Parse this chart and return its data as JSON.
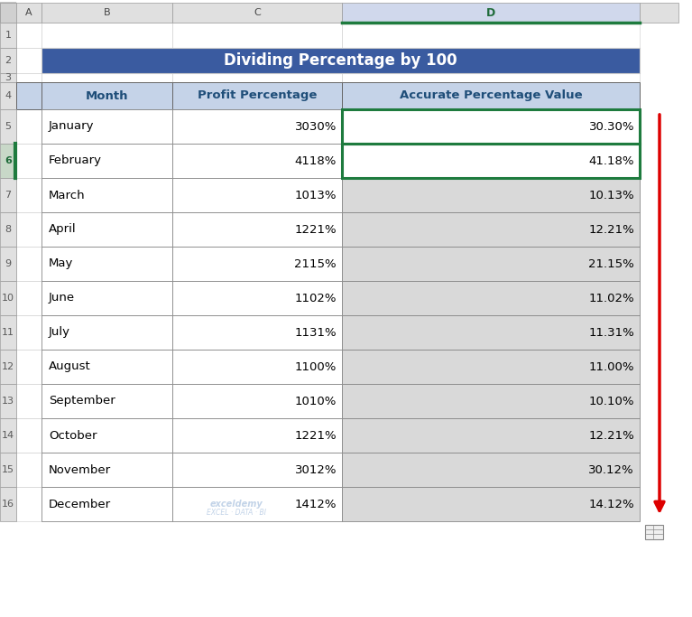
{
  "title": "Dividing Percentage by 100",
  "title_bg": "#3A5BA0",
  "title_color": "#FFFFFF",
  "headers": [
    "Month",
    "Profit Percentage",
    "Accurate Percentage Value"
  ],
  "header_bg": "#C5D3E8",
  "header_color": "#1F4E79",
  "months": [
    "January",
    "February",
    "March",
    "April",
    "May",
    "June",
    "July",
    "August",
    "September",
    "October",
    "November",
    "December"
  ],
  "profit_pct": [
    "3030%",
    "4118%",
    "1013%",
    "1221%",
    "2115%",
    "1102%",
    "1131%",
    "1100%",
    "1010%",
    "1221%",
    "3012%",
    "1412%"
  ],
  "accurate_pct": [
    "30.30%",
    "41.18%",
    "10.13%",
    "12.21%",
    "21.15%",
    "11.02%",
    "11.31%",
    "11.00%",
    "10.10%",
    "12.21%",
    "30.12%",
    "14.12%"
  ],
  "fig_w": 767,
  "fig_h": 683,
  "col_header_bg": "#E0E0E0",
  "selected_col_bg": "#D0D8EC",
  "selected_col_color": "#1F6B3A",
  "row_num_color": "#595959",
  "arrow_color": "#DD0000",
  "green_border_color": "#1E7B3E",
  "white": "#FFFFFF",
  "gray_row": "#D9D9D9",
  "border_color": "#888888",
  "dark_border": "#505050",
  "watermark_color": "#B8CCE4"
}
